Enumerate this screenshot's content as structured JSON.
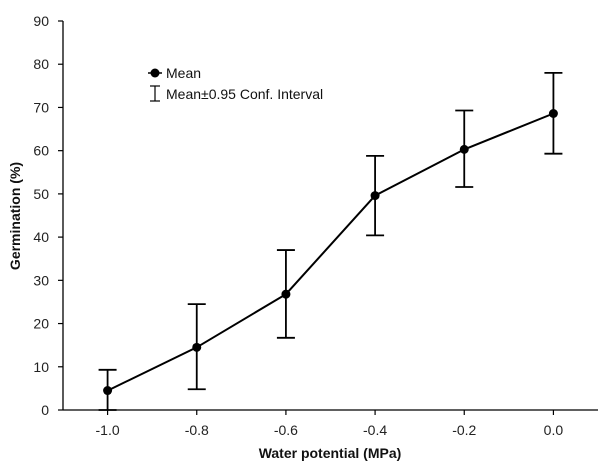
{
  "chart_data": {
    "type": "line",
    "title": "",
    "xlabel": "Water potential (MPa)",
    "ylabel": "Germination (%)",
    "xlim": [
      -1.1,
      0.1
    ],
    "ylim": [
      0,
      90
    ],
    "x_ticks": [
      -1.0,
      -0.8,
      -0.6,
      -0.4,
      -0.2,
      0.0
    ],
    "x_tick_labels": [
      "-1.0",
      "-0.8",
      "-0.6",
      "-0.4",
      "-0.2",
      "0.0"
    ],
    "y_ticks": [
      0,
      10,
      20,
      30,
      40,
      50,
      60,
      70,
      80,
      90
    ],
    "y_tick_labels": [
      "0",
      "10",
      "20",
      "30",
      "40",
      "50",
      "60",
      "70",
      "80",
      "90"
    ],
    "grid": false,
    "legend_position": "top-left",
    "series": [
      {
        "name": "Mean",
        "x": [
          -1.0,
          -0.8,
          -0.6,
          -0.4,
          -0.2,
          0.0
        ],
        "y": [
          4.5,
          14.5,
          26.8,
          49.6,
          60.3,
          68.6
        ],
        "ci_low": [
          0,
          4.8,
          16.7,
          40.4,
          51.6,
          59.3
        ],
        "ci_high": [
          9.3,
          24.5,
          37.0,
          58.8,
          69.3,
          78.0
        ]
      }
    ],
    "legend": {
      "mean_label": "Mean",
      "ci_label": "Mean±0.95 Conf. Interval"
    },
    "colors": {
      "line": "#000000",
      "axis": "#000000"
    }
  }
}
